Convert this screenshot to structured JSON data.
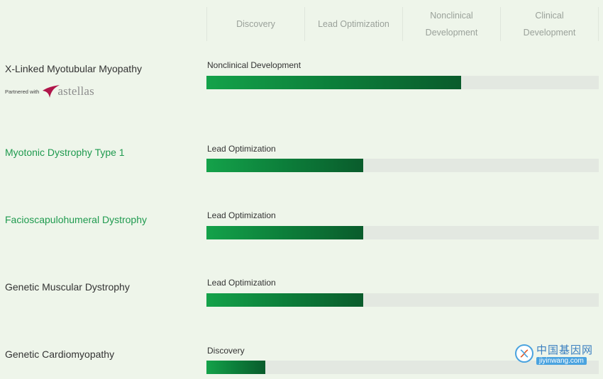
{
  "stages": [
    "Discovery",
    "Lead Optimization",
    "Nonclinical\nDevelopment",
    "Clinical\nDevelopment"
  ],
  "partner": {
    "text": "Partnered with",
    "logo_word": "astellas"
  },
  "watermark": {
    "cn": "中国基因网",
    "url": "jiyinwang.com"
  },
  "colors": {
    "bar_start": "#14a24a",
    "bar_end": "#0a5c2c",
    "track": "#e3e8e1",
    "green_text": "#1f9a4f"
  },
  "chart_data": {
    "type": "bar",
    "orientation": "horizontal",
    "categories": [
      "X-Linked Myotubular Myopathy",
      "Myotonic Dystrophy Type 1",
      "Facioscapulohumeral Dystrophy",
      "Genetic Muscular Dystrophy",
      "Genetic Cardiomyopathy"
    ],
    "stage_labels": [
      "Nonclinical Development",
      "Lead Optimization",
      "Lead Optimization",
      "Lead Optimization",
      "Discovery"
    ],
    "values": [
      0.65,
      0.4,
      0.4,
      0.4,
      0.15
    ],
    "value_unit": "fraction of full pipeline",
    "highlighted": [
      false,
      true,
      true,
      false,
      false
    ],
    "xlim": [
      0,
      1
    ]
  }
}
